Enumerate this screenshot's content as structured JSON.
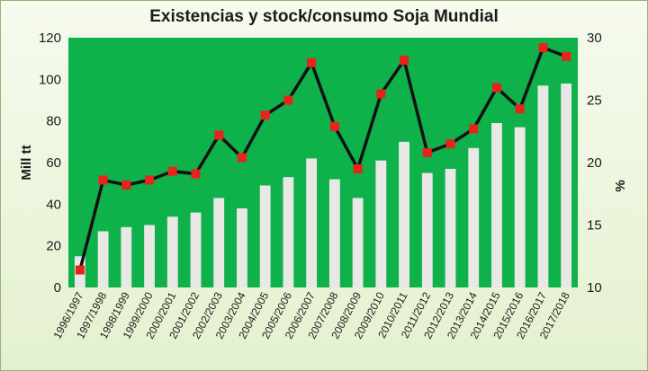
{
  "chart_data": {
    "type": "bar+line",
    "title": "Existencias y stock/consumo Soja Mundial",
    "ylabel": "Mill tt",
    "y2label": "%",
    "ylim": [
      0,
      120
    ],
    "y2lim": [
      10,
      30
    ],
    "yticks": [
      0,
      20,
      40,
      60,
      80,
      100,
      120
    ],
    "y2ticks": [
      10,
      15,
      20,
      25,
      30
    ],
    "categories": [
      "1996/1997",
      "1997/1998",
      "1998/1999",
      "1999/2000",
      "2000/2001",
      "2001/2002",
      "2002/2003",
      "2003/2004",
      "2004/2005",
      "2005/2006",
      "2006/2007",
      "2007/2008",
      "2008/2009",
      "2009/2010",
      "2010/2011",
      "2011/2012",
      "2012/2013",
      "2013/2014",
      "2014/2015",
      "2015/2016",
      "2016/2017",
      "2017/2018"
    ],
    "series": [
      {
        "values": [
          15,
          27,
          29,
          30,
          34,
          36,
          43,
          38,
          49,
          53,
          62,
          52,
          43,
          61,
          70,
          55,
          57,
          67,
          79,
          77,
          97,
          98
        ],
        "axis": "left",
        "kind": "bar"
      },
      {
        "values": [
          11.4,
          18.6,
          18.2,
          18.6,
          19.3,
          19.1,
          22.2,
          20.4,
          23.8,
          25.0,
          28.0,
          22.9,
          19.5,
          25.5,
          28.2,
          20.8,
          21.5,
          22.7,
          26.0,
          24.3,
          29.2,
          28.5
        ],
        "axis": "right",
        "kind": "line"
      }
    ],
    "colors": {
      "plot_background": "#0fb14a",
      "bar": "#e8e8e4",
      "line": "#111111",
      "marker": "#e8231c"
    },
    "grid": false
  }
}
